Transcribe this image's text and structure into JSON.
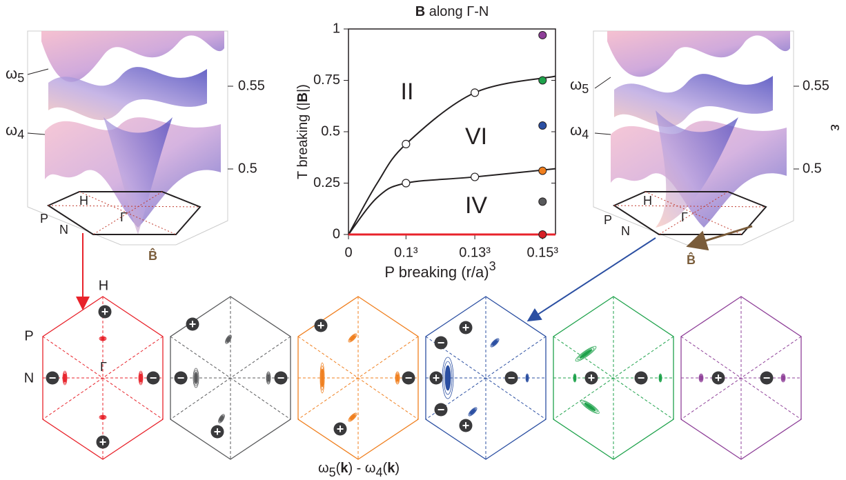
{
  "chart_data": {
    "type": "line",
    "top_label": [
      "B",
      " along Γ-N"
    ],
    "y_label": [
      "T breaking (|",
      "B",
      "|)"
    ],
    "x_label": [
      "P breaking (r/a)",
      "3"
    ],
    "xlim": [
      0,
      0.0036
    ],
    "ylim": [
      0,
      1
    ],
    "xticks": [
      0,
      {
        "value": 0.001,
        "label": "0.1³"
      },
      {
        "value": 0.002197,
        "label": "0.13³"
      },
      {
        "value": 0.003375,
        "label": "0.15³"
      }
    ],
    "yticks": [
      0,
      0.25,
      0.5,
      0.75,
      1
    ],
    "regions": [
      "II",
      "VI",
      "IV"
    ],
    "series": [
      {
        "color": "#231f20",
        "x": [
          0,
          0.0005,
          0.001,
          0.002197,
          0.0036
        ],
        "values": [
          0,
          0.25,
          0.44,
          0.69,
          0.77
        ]
      },
      {
        "color": "#231f20",
        "x": [
          0,
          0.0005,
          0.001,
          0.002197,
          0.0036
        ],
        "values": [
          0,
          0.18,
          0.25,
          0.28,
          0.32
        ]
      },
      {
        "color": "#e8222a",
        "x": [
          0,
          0.0036
        ],
        "values": [
          0,
          0
        ]
      }
    ],
    "markers": {
      "color": "#ffffff",
      "x": [
        0.001,
        0.002197,
        0.001,
        0.002197
      ],
      "values": [
        0.44,
        0.69,
        0.25,
        0.28
      ]
    },
    "dots": {
      "x": [
        0.003375,
        0.003375,
        0.003375,
        0.003375,
        0.003375,
        0.003375
      ],
      "values": [
        0.97,
        0.75,
        0.53,
        0.31,
        0.16,
        0
      ],
      "colors": [
        "#8e3f98",
        "#1ea24b",
        "#2b4fa2",
        "#f07f1e",
        "#58595b",
        "#d62027"
      ]
    }
  },
  "left_panel": {
    "omega5": [
      "ω",
      "5"
    ],
    "omega4": [
      "ω",
      "4"
    ],
    "ticks": [
      "0.55",
      "0.5"
    ],
    "points": [
      "H",
      "P",
      "N",
      "Γ"
    ],
    "field": "B̂"
  },
  "right_panel": {
    "omega5": [
      "ω",
      "5"
    ],
    "omega4": [
      "ω",
      "4"
    ],
    "ticks": [
      "0.55",
      "0.5"
    ],
    "points": [
      "H",
      "P",
      "N",
      "Γ"
    ],
    "field": "B̂",
    "axis": "ε"
  },
  "hex_labels": [
    "H",
    "P",
    "N",
    "Γ"
  ],
  "hexagons": [
    {
      "color": "#e8222a",
      "charges": [
        "+",
        "+",
        "−",
        "−"
      ]
    },
    {
      "color": "#58595b",
      "charges": [
        "+",
        "+",
        "−",
        "−"
      ]
    },
    {
      "color": "#f07f1e",
      "charges": [
        "+",
        "+",
        "−"
      ]
    },
    {
      "color": "#2b4fa2",
      "charges": [
        "+",
        "+",
        "−",
        "−",
        "+",
        "−"
      ]
    },
    {
      "color": "#1ea24b",
      "charges": [
        "+",
        "−"
      ]
    },
    {
      "color": "#8e3f98",
      "charges": [
        "+",
        "−"
      ]
    }
  ],
  "caption": [
    "ω",
    "5",
    "(",
    "k",
    ") - ω",
    "4",
    "(",
    "k",
    ")"
  ]
}
